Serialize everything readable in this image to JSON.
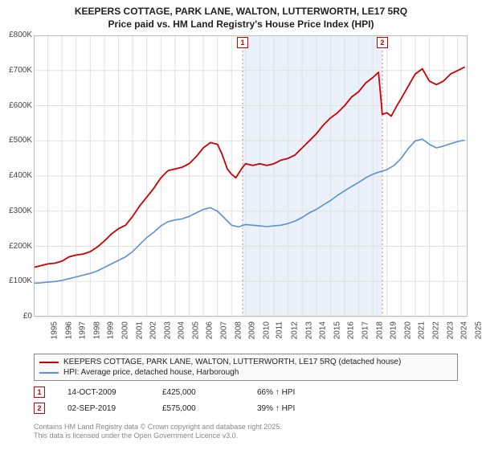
{
  "title_line1": "KEEPERS COTTAGE, PARK LANE, WALTON, LUTTERWORTH, LE17 5RQ",
  "title_line2": "Price paid vs. HM Land Registry's House Price Index (HPI)",
  "title_fontsize": 12,
  "chart": {
    "type": "line",
    "background_color": "#ffffff",
    "grid_color": "#e0e0e0",
    "shade_color": "#eaf1fb",
    "shade_x_start": 2009.78,
    "shade_x_end": 2019.67,
    "axis": {
      "x": {
        "min": 1995,
        "max": 2025.7,
        "ticks": [
          1995,
          1996,
          1997,
          1998,
          1999,
          2000,
          2001,
          2002,
          2003,
          2004,
          2005,
          2006,
          2007,
          2008,
          2009,
          2010,
          2011,
          2012,
          2013,
          2014,
          2015,
          2016,
          2017,
          2018,
          2019,
          2020,
          2021,
          2022,
          2023,
          2024,
          2025
        ],
        "label_fontsize": 10
      },
      "y": {
        "min": 0,
        "max": 800000,
        "ticks": [
          0,
          100000,
          200000,
          300000,
          400000,
          500000,
          600000,
          700000,
          800000
        ],
        "tick_labels": [
          "£0",
          "£100K",
          "£200K",
          "£300K",
          "£400K",
          "£500K",
          "£600K",
          "£700K",
          "£800K"
        ],
        "label_fontsize": 10
      }
    },
    "series": [
      {
        "id": "property",
        "label": "KEEPERS COTTAGE, PARK LANE, WALTON, LUTTERWORTH, LE17 5RQ (detached house)",
        "color": "#cc0000",
        "line_width": 1.8,
        "data": [
          [
            1995.0,
            140000
          ],
          [
            1995.5,
            145000
          ],
          [
            1996.0,
            150000
          ],
          [
            1996.5,
            152000
          ],
          [
            1997.0,
            158000
          ],
          [
            1997.5,
            170000
          ],
          [
            1998.0,
            175000
          ],
          [
            1998.5,
            178000
          ],
          [
            1999.0,
            185000
          ],
          [
            1999.5,
            198000
          ],
          [
            2000.0,
            215000
          ],
          [
            2000.5,
            235000
          ],
          [
            2001.0,
            250000
          ],
          [
            2001.5,
            260000
          ],
          [
            2002.0,
            285000
          ],
          [
            2002.5,
            315000
          ],
          [
            2003.0,
            340000
          ],
          [
            2003.5,
            365000
          ],
          [
            2004.0,
            395000
          ],
          [
            2004.5,
            415000
          ],
          [
            2005.0,
            420000
          ],
          [
            2005.5,
            425000
          ],
          [
            2006.0,
            435000
          ],
          [
            2006.5,
            455000
          ],
          [
            2007.0,
            480000
          ],
          [
            2007.5,
            495000
          ],
          [
            2008.0,
            490000
          ],
          [
            2008.3,
            465000
          ],
          [
            2008.7,
            420000
          ],
          [
            2009.0,
            405000
          ],
          [
            2009.3,
            395000
          ],
          [
            2009.78,
            425000
          ],
          [
            2010.0,
            435000
          ],
          [
            2010.5,
            430000
          ],
          [
            2011.0,
            435000
          ],
          [
            2011.5,
            430000
          ],
          [
            2012.0,
            435000
          ],
          [
            2012.5,
            445000
          ],
          [
            2013.0,
            450000
          ],
          [
            2013.5,
            460000
          ],
          [
            2014.0,
            480000
          ],
          [
            2014.5,
            500000
          ],
          [
            2015.0,
            520000
          ],
          [
            2015.5,
            545000
          ],
          [
            2016.0,
            565000
          ],
          [
            2016.5,
            580000
          ],
          [
            2017.0,
            600000
          ],
          [
            2017.5,
            625000
          ],
          [
            2018.0,
            640000
          ],
          [
            2018.5,
            665000
          ],
          [
            2019.0,
            680000
          ],
          [
            2019.4,
            695000
          ],
          [
            2019.67,
            575000
          ],
          [
            2020.0,
            580000
          ],
          [
            2020.3,
            570000
          ],
          [
            2020.7,
            600000
          ],
          [
            2021.0,
            620000
          ],
          [
            2021.5,
            655000
          ],
          [
            2022.0,
            690000
          ],
          [
            2022.5,
            705000
          ],
          [
            2023.0,
            670000
          ],
          [
            2023.5,
            660000
          ],
          [
            2024.0,
            670000
          ],
          [
            2024.5,
            690000
          ],
          [
            2025.0,
            700000
          ],
          [
            2025.5,
            710000
          ]
        ]
      },
      {
        "id": "hpi",
        "label": "HPI: Average price, detached house, Harborough",
        "color": "#5b8fd6",
        "line_width": 1.6,
        "data": [
          [
            1995.0,
            95000
          ],
          [
            1995.5,
            96000
          ],
          [
            1996.0,
            98000
          ],
          [
            1996.5,
            100000
          ],
          [
            1997.0,
            103000
          ],
          [
            1997.5,
            108000
          ],
          [
            1998.0,
            113000
          ],
          [
            1998.5,
            118000
          ],
          [
            1999.0,
            123000
          ],
          [
            1999.5,
            130000
          ],
          [
            2000.0,
            140000
          ],
          [
            2000.5,
            150000
          ],
          [
            2001.0,
            160000
          ],
          [
            2001.5,
            170000
          ],
          [
            2002.0,
            185000
          ],
          [
            2002.5,
            205000
          ],
          [
            2003.0,
            225000
          ],
          [
            2003.5,
            240000
          ],
          [
            2004.0,
            258000
          ],
          [
            2004.5,
            270000
          ],
          [
            2005.0,
            275000
          ],
          [
            2005.5,
            278000
          ],
          [
            2006.0,
            285000
          ],
          [
            2006.5,
            295000
          ],
          [
            2007.0,
            305000
          ],
          [
            2007.5,
            310000
          ],
          [
            2008.0,
            300000
          ],
          [
            2008.5,
            280000
          ],
          [
            2009.0,
            260000
          ],
          [
            2009.5,
            255000
          ],
          [
            2010.0,
            262000
          ],
          [
            2010.5,
            260000
          ],
          [
            2011.0,
            258000
          ],
          [
            2011.5,
            256000
          ],
          [
            2012.0,
            258000
          ],
          [
            2012.5,
            260000
          ],
          [
            2013.0,
            265000
          ],
          [
            2013.5,
            272000
          ],
          [
            2014.0,
            282000
          ],
          [
            2014.5,
            295000
          ],
          [
            2015.0,
            305000
          ],
          [
            2015.5,
            318000
          ],
          [
            2016.0,
            330000
          ],
          [
            2016.5,
            345000
          ],
          [
            2017.0,
            358000
          ],
          [
            2017.5,
            370000
          ],
          [
            2018.0,
            382000
          ],
          [
            2018.5,
            395000
          ],
          [
            2019.0,
            405000
          ],
          [
            2019.5,
            412000
          ],
          [
            2020.0,
            418000
          ],
          [
            2020.5,
            430000
          ],
          [
            2021.0,
            450000
          ],
          [
            2021.5,
            478000
          ],
          [
            2022.0,
            500000
          ],
          [
            2022.5,
            505000
          ],
          [
            2023.0,
            490000
          ],
          [
            2023.5,
            480000
          ],
          [
            2024.0,
            485000
          ],
          [
            2024.5,
            492000
          ],
          [
            2025.0,
            498000
          ],
          [
            2025.5,
            502000
          ]
        ]
      }
    ],
    "markers": [
      {
        "n": "1",
        "x": 2009.78,
        "y_anchor": 785000,
        "color": "#cc0000"
      },
      {
        "n": "2",
        "x": 2019.67,
        "y_anchor": 785000,
        "color": "#cc0000"
      }
    ]
  },
  "legend": {
    "border_color": "#888888",
    "fontsize": 10
  },
  "marker_details": [
    {
      "n": "1",
      "date": "14-OCT-2009",
      "price": "£425,000",
      "delta": "66% ↑ HPI",
      "color": "#cc0000"
    },
    {
      "n": "2",
      "date": "02-SEP-2019",
      "price": "£575,000",
      "delta": "39% ↑ HPI",
      "color": "#cc0000"
    }
  ],
  "footer": {
    "line1": "Contains HM Land Registry data © Crown copyright and database right 2025.",
    "line2": "This data is licensed under the Open Government Licence v3.0.",
    "color": "#888888",
    "fontsize": 9
  }
}
